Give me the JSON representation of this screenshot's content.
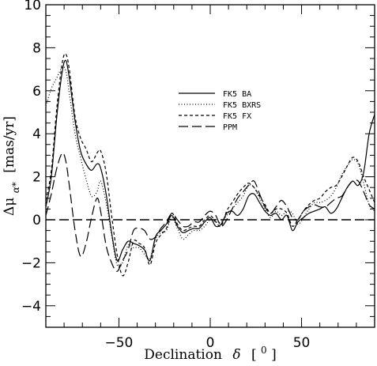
{
  "chart_data": {
    "type": "line",
    "xlabel_text": "Declination",
    "xlabel_symbol": "δ",
    "xlabel_unit_open": "[",
    "xlabel_unit": "0",
    "xlabel_unit_close": "]",
    "ylabel_text": "Δμ",
    "ylabel_sub": "α*",
    "ylabel_unit": "[mas/yr]",
    "xlim": [
      -90,
      90
    ],
    "ylim": [
      -5,
      10
    ],
    "x_ticks": [
      -50,
      0,
      50
    ],
    "x_tick_labels": [
      "−50",
      "0",
      "50"
    ],
    "y_ticks": [
      -4,
      -2,
      0,
      2,
      4,
      6,
      8,
      10
    ],
    "y_tick_labels": [
      "−4",
      "−2",
      "0",
      "2",
      "4",
      "6",
      "8",
      "10"
    ],
    "grid": false,
    "legend_position": "upper-center-right",
    "reference_line": {
      "y": 0,
      "style": "long-dashed"
    },
    "series": [
      {
        "name": "FK5 BA",
        "style": "solid",
        "x": [
          -90,
          -87,
          -84,
          -81,
          -79,
          -77,
          -74,
          -71,
          -68,
          -65,
          -62,
          -60,
          -57,
          -54,
          -51,
          -48,
          -45,
          -42,
          -39,
          -36,
          -33,
          -30,
          -27,
          -24,
          -21,
          -18,
          -15,
          -12,
          -9,
          -6,
          -3,
          0,
          3,
          6,
          9,
          12,
          15,
          18,
          21,
          24,
          27,
          30,
          33,
          36,
          39,
          42,
          45,
          48,
          51,
          54,
          57,
          60,
          63,
          66,
          69,
          72,
          75,
          78,
          81,
          84,
          87,
          90
        ],
        "values": [
          0.6,
          2.0,
          4.8,
          6.9,
          7.4,
          6.5,
          4.6,
          3.2,
          2.6,
          2.3,
          2.6,
          2.4,
          1.2,
          -0.6,
          -1.9,
          -1.4,
          -1.0,
          -1.1,
          -1.2,
          -1.4,
          -1.9,
          -0.8,
          -0.5,
          -0.2,
          0.2,
          -0.3,
          -0.6,
          -0.5,
          -0.4,
          -0.4,
          -0.1,
          0.1,
          -0.3,
          -0.2,
          0.3,
          0.4,
          0.2,
          0.5,
          1.1,
          1.2,
          0.8,
          0.4,
          0.2,
          0.3,
          0.0,
          0.2,
          -0.5,
          -0.1,
          0.1,
          0.3,
          0.4,
          0.5,
          0.6,
          0.3,
          0.5,
          1.0,
          1.5,
          1.8,
          1.6,
          2.2,
          4.0,
          4.9
        ]
      },
      {
        "name": "FK5 BXRS",
        "style": "dotted",
        "x": [
          -90,
          -87,
          -84,
          -81,
          -79,
          -77,
          -74,
          -71,
          -68,
          -65,
          -62,
          -60,
          -57,
          -54,
          -51,
          -48,
          -45,
          -42,
          -39,
          -36,
          -33,
          -30,
          -27,
          -24,
          -21,
          -18,
          -15,
          -12,
          -9,
          -6,
          -3,
          0,
          3,
          6,
          9,
          12,
          15,
          18,
          21,
          24,
          27,
          30,
          33,
          36,
          39,
          42,
          45,
          48,
          51,
          54,
          57,
          60,
          63,
          66,
          69,
          72,
          75,
          78,
          81,
          84,
          87,
          90
        ],
        "values": [
          5.3,
          6.1,
          6.6,
          7.1,
          6.9,
          5.8,
          4.0,
          2.9,
          1.9,
          1.1,
          1.3,
          1.8,
          0.8,
          -0.7,
          -2.1,
          -2.0,
          -1.2,
          -1.3,
          -1.3,
          -1.6,
          -1.8,
          -0.9,
          -0.6,
          -0.5,
          0.1,
          -0.4,
          -0.9,
          -0.7,
          -0.5,
          -0.5,
          -0.3,
          0.0,
          -0.1,
          -0.1,
          0.2,
          0.5,
          0.8,
          1.1,
          1.6,
          1.5,
          1.0,
          0.5,
          0.1,
          0.4,
          0.2,
          0.4,
          0.3,
          -0.2,
          0.1,
          0.5,
          0.8,
          0.8,
          0.9,
          1.1,
          1.5,
          2.1,
          2.5,
          2.8,
          2.6,
          1.7,
          0.7,
          0.4
        ]
      },
      {
        "name": "FK5 FX",
        "style": "dashed",
        "x": [
          -90,
          -87,
          -84,
          -81,
          -79,
          -77,
          -74,
          -71,
          -68,
          -65,
          -62,
          -60,
          -57,
          -54,
          -51,
          -48,
          -45,
          -42,
          -39,
          -36,
          -33,
          -30,
          -27,
          -24,
          -21,
          -18,
          -15,
          -12,
          -9,
          -6,
          -3,
          0,
          3,
          6,
          9,
          12,
          15,
          18,
          21,
          24,
          27,
          30,
          33,
          36,
          39,
          42,
          45,
          48,
          51,
          54,
          57,
          60,
          63,
          66,
          69,
          72,
          75,
          78,
          81,
          84,
          87,
          90
        ],
        "values": [
          0.9,
          2.3,
          5.2,
          7.3,
          7.7,
          6.9,
          4.8,
          3.8,
          3.3,
          2.7,
          3.1,
          3.2,
          2.2,
          0.2,
          -1.6,
          -2.6,
          -2.0,
          -1.0,
          -1.1,
          -1.3,
          -2.1,
          -1.1,
          -0.7,
          -0.4,
          0.3,
          -0.2,
          -0.5,
          -0.4,
          -0.3,
          -0.3,
          0.0,
          0.2,
          -0.1,
          -0.3,
          0.4,
          0.8,
          1.2,
          1.5,
          1.7,
          1.5,
          1.1,
          0.7,
          0.3,
          0.5,
          0.5,
          0.3,
          -0.3,
          0.0,
          0.4,
          0.7,
          0.9,
          1.0,
          1.3,
          1.5,
          1.6,
          2.0,
          2.5,
          2.9,
          2.7,
          2.0,
          1.4,
          0.8
        ]
      },
      {
        "name": "PPM",
        "style": "long-dashed",
        "x": [
          -90,
          -87,
          -84,
          -81,
          -79,
          -77,
          -74,
          -71,
          -68,
          -65,
          -62,
          -60,
          -57,
          -54,
          -51,
          -48,
          -45,
          -42,
          -39,
          -36,
          -33,
          -30,
          -27,
          -24,
          -21,
          -18,
          -15,
          -12,
          -9,
          -6,
          -3,
          0,
          3,
          6,
          9,
          12,
          15,
          18,
          21,
          24,
          27,
          30,
          33,
          36,
          39,
          42,
          45,
          48,
          51,
          54,
          57,
          60,
          63,
          66,
          69,
          72,
          75,
          78,
          81,
          84,
          87,
          90
        ],
        "values": [
          0.2,
          1.2,
          2.4,
          3.1,
          2.7,
          1.5,
          -0.5,
          -1.7,
          -1.1,
          0.1,
          1.0,
          0.4,
          -1.2,
          -2.0,
          -2.4,
          -1.9,
          -1.4,
          -0.5,
          -0.4,
          -0.5,
          -0.9,
          -0.8,
          -0.4,
          -0.1,
          0.3,
          0.0,
          -0.3,
          -0.3,
          -0.1,
          -0.1,
          0.2,
          0.4,
          0.2,
          -0.3,
          0.0,
          0.5,
          1.0,
          1.3,
          1.6,
          1.8,
          1.2,
          0.6,
          0.3,
          0.6,
          0.9,
          0.6,
          0.1,
          0.0,
          0.4,
          0.6,
          0.7,
          0.6,
          0.6,
          0.8,
          1.0,
          1.1,
          1.5,
          1.8,
          1.8,
          1.3,
          0.7,
          0.5
        ]
      }
    ]
  }
}
